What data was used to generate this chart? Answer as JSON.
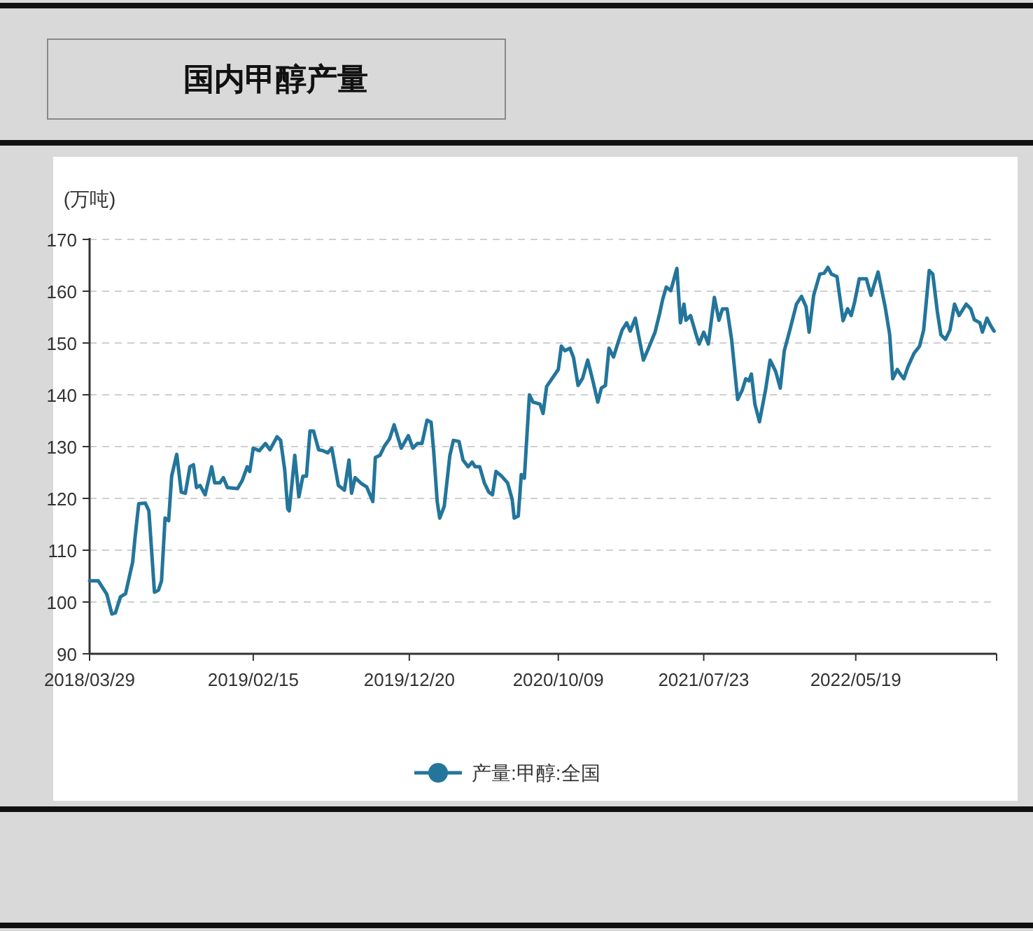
{
  "chart_data": {
    "type": "line",
    "title": "国内甲醇产量",
    "ylabel": "(万吨)",
    "x": [
      "2018-03-29",
      "2018-04-15",
      "2018-05-02",
      "2018-05-12",
      "2018-05-19",
      "2018-05-29",
      "2018-06-08",
      "2018-06-22",
      "2018-06-27",
      "2018-07-04",
      "2018-07-17",
      "2018-07-24",
      "2018-08-04",
      "2018-08-12",
      "2018-08-18",
      "2018-08-25",
      "2018-09-01",
      "2018-09-07",
      "2018-09-17",
      "2018-09-26",
      "2018-10-04",
      "2018-10-13",
      "2018-10-20",
      "2018-10-26",
      "2018-11-02",
      "2018-11-12",
      "2018-11-25",
      "2018-12-01",
      "2018-12-11",
      "2018-12-18",
      "2018-12-26",
      "2019-01-15",
      "2019-01-24",
      "2019-02-03",
      "2019-02-08",
      "2019-02-15",
      "2019-02-27",
      "2019-03-11",
      "2019-03-20",
      "2019-04-03",
      "2019-04-10",
      "2019-04-18",
      "2019-04-24",
      "2019-04-27",
      "2019-05-08",
      "2019-05-16",
      "2019-05-24",
      "2019-05-31",
      "2019-06-07",
      "2019-06-14",
      "2019-06-24",
      "2019-07-03",
      "2019-07-12",
      "2019-07-20",
      "2019-08-02",
      "2019-08-14",
      "2019-08-23",
      "2019-08-28",
      "2019-09-04",
      "2019-09-16",
      "2019-09-27",
      "2019-10-09",
      "2019-10-14",
      "2019-10-23",
      "2019-11-01",
      "2019-11-11",
      "2019-11-20",
      "2019-12-04",
      "2019-12-18",
      "2019-12-27",
      "2020-01-05",
      "2020-01-14",
      "2020-01-24",
      "2020-02-01",
      "2020-02-06",
      "2020-02-13",
      "2020-02-18",
      "2020-02-27",
      "2020-03-09",
      "2020-03-16",
      "2020-03-27",
      "2020-04-04",
      "2020-04-14",
      "2020-04-22",
      "2020-04-28",
      "2020-05-07",
      "2020-05-16",
      "2020-05-25",
      "2020-06-01",
      "2020-06-08",
      "2020-06-19",
      "2020-07-01",
      "2020-07-10",
      "2020-07-14",
      "2020-07-22",
      "2020-07-28",
      "2020-08-03",
      "2020-08-13",
      "2020-08-20",
      "2020-09-03",
      "2020-09-09",
      "2020-09-16",
      "2020-09-30",
      "2020-10-09",
      "2020-10-15",
      "2020-10-22",
      "2020-11-01",
      "2020-11-08",
      "2020-11-17",
      "2020-11-26",
      "2020-12-06",
      "2020-12-15",
      "2020-12-26",
      "2021-01-02",
      "2021-01-10",
      "2021-01-17",
      "2021-01-26",
      "2021-02-03",
      "2021-02-12",
      "2021-02-21",
      "2021-02-28",
      "2021-03-10",
      "2021-03-17",
      "2021-03-26",
      "2021-04-05",
      "2021-04-18",
      "2021-04-27",
      "2021-05-03",
      "2021-05-10",
      "2021-05-19",
      "2021-05-31",
      "2021-06-07",
      "2021-06-14",
      "2021-06-18",
      "2021-06-27",
      "2021-07-08",
      "2021-07-14",
      "2021-07-23",
      "2021-08-01",
      "2021-08-13",
      "2021-08-22",
      "2021-08-29",
      "2021-09-07",
      "2021-09-16",
      "2021-09-28",
      "2021-10-07",
      "2021-10-14",
      "2021-10-20",
      "2021-10-25",
      "2021-11-01",
      "2021-11-10",
      "2021-11-22",
      "2021-12-01",
      "2021-12-12",
      "2021-12-21",
      "2021-12-29",
      "2022-01-09",
      "2022-01-22",
      "2022-02-01",
      "2022-02-10",
      "2022-02-16",
      "2022-02-25",
      "2022-03-09",
      "2022-03-18",
      "2022-03-25",
      "2022-04-01",
      "2022-04-12",
      "2022-04-24",
      "2022-05-03",
      "2022-05-10",
      "2022-05-17",
      "2022-05-26",
      "2022-06-09",
      "2022-06-18",
      "2022-07-02",
      "2022-07-16",
      "2022-07-25",
      "2022-07-31",
      "2022-08-09",
      "2022-08-15",
      "2022-08-22",
      "2022-08-30",
      "2022-09-11",
      "2022-09-22",
      "2022-09-30",
      "2022-10-11",
      "2022-10-18",
      "2022-10-27",
      "2022-11-03",
      "2022-11-12",
      "2022-11-21",
      "2022-11-30",
      "2022-12-09",
      "2022-12-23",
      "2023-01-01",
      "2023-01-08",
      "2023-01-19",
      "2023-01-24",
      "2023-02-02",
      "2023-02-09",
      "2023-02-16"
    ],
    "series": [
      {
        "name": "产量:甲醇:全国",
        "color": "#23759b",
        "values": [
          104.1,
          104.1,
          101.5,
          97.7,
          97.9,
          101.0,
          101.6,
          107.7,
          112.7,
          119.0,
          119.1,
          117.6,
          101.9,
          102.3,
          104.1,
          116.2,
          115.7,
          124.3,
          128.5,
          121.2,
          121.0,
          126.1,
          126.5,
          122.1,
          122.5,
          120.7,
          126.1,
          123.0,
          123.0,
          124.0,
          122.1,
          121.9,
          123.4,
          126.1,
          125.2,
          129.7,
          129.2,
          130.6,
          129.4,
          131.9,
          131.2,
          125.6,
          118.0,
          117.6,
          128.3,
          120.3,
          124.3,
          124.3,
          133.0,
          133.0,
          129.4,
          129.2,
          128.8,
          129.7,
          122.5,
          121.6,
          127.4,
          121.0,
          124.0,
          122.9,
          122.2,
          119.4,
          127.9,
          128.3,
          130.1,
          131.5,
          134.2,
          129.7,
          132.1,
          129.7,
          130.6,
          130.6,
          135.1,
          134.7,
          129.2,
          119.4,
          116.2,
          118.5,
          128.3,
          131.2,
          131.0,
          127.4,
          126.1,
          127.0,
          126.1,
          126.1,
          123.0,
          121.2,
          120.7,
          125.2,
          124.3,
          123.0,
          119.8,
          116.2,
          116.6,
          124.6,
          123.9,
          140.0,
          138.6,
          138.2,
          136.4,
          141.6,
          143.6,
          144.9,
          149.4,
          148.5,
          149.0,
          147.2,
          141.8,
          143.2,
          146.7,
          143.2,
          138.6,
          141.3,
          141.8,
          149.0,
          147.3,
          149.8,
          152.5,
          153.9,
          152.3,
          154.8,
          151.2,
          146.7,
          149.0,
          152.1,
          155.7,
          158.4,
          160.8,
          160.1,
          164.4,
          153.9,
          157.5,
          154.4,
          155.3,
          151.6,
          149.8,
          152.1,
          149.8,
          158.8,
          154.4,
          156.6,
          156.6,
          150.7,
          139.1,
          140.9,
          143.1,
          142.7,
          144.0,
          138.2,
          134.8,
          140.9,
          146.7,
          144.5,
          141.3,
          148.5,
          152.5,
          157.5,
          159.0,
          157.0,
          152.1,
          159.2,
          163.3,
          163.5,
          164.6,
          163.3,
          162.8,
          154.3,
          156.6,
          155.3,
          158.0,
          162.4,
          162.4,
          159.2,
          163.7,
          157.0,
          151.6,
          143.1,
          144.9,
          144.0,
          143.1,
          145.4,
          148.0,
          149.4,
          152.5,
          164.0,
          163.3,
          156.1,
          151.6,
          150.7,
          152.5,
          157.5,
          155.3,
          157.5,
          156.6,
          154.5,
          153.9,
          152.1,
          154.8,
          153.4,
          152.3
        ]
      }
    ],
    "xlim": [
      "2018-03-29",
      "2023-02-21"
    ],
    "xticks": [
      {
        "value": "2018-03-29",
        "label": "2018/03/29"
      },
      {
        "value": "2019-02-15",
        "label": "2019/02/15"
      },
      {
        "value": "2019-12-20",
        "label": "2019/12/20"
      },
      {
        "value": "2020-10-09",
        "label": "2020/10/09"
      },
      {
        "value": "2021-07-23",
        "label": "2021/07/23"
      },
      {
        "value": "2022-05-19",
        "label": "2022/05/19"
      }
    ],
    "ylim": [
      90,
      170
    ],
    "yticks": [
      90,
      100,
      110,
      120,
      130,
      140,
      150,
      160,
      170
    ],
    "grid": "y",
    "legend": "bottom"
  }
}
